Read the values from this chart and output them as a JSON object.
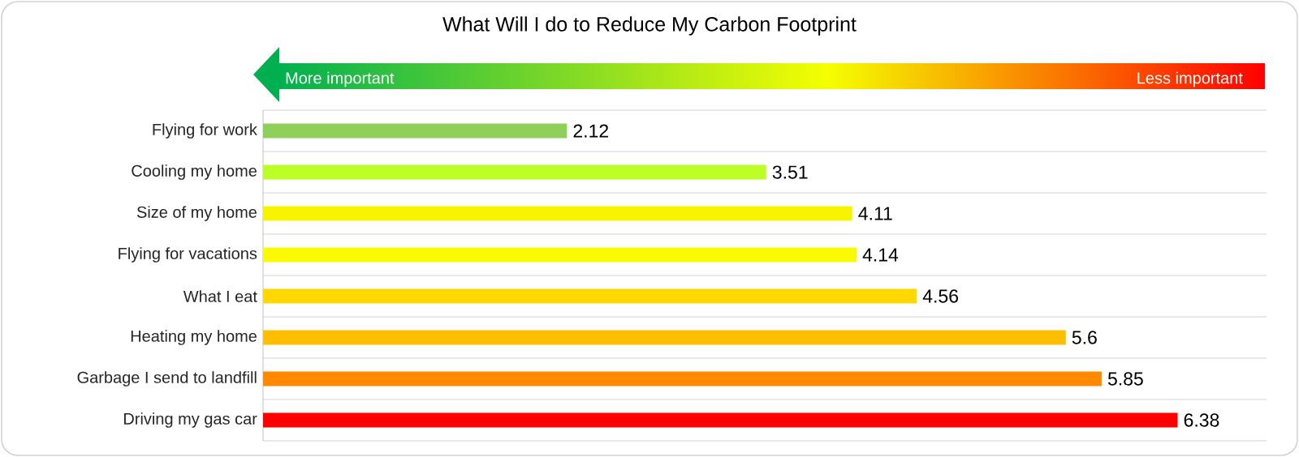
{
  "chart_data": {
    "type": "bar",
    "orientation": "horizontal",
    "title": "What Will I do to Reduce My Carbon Footprint",
    "categories": [
      "Flying for work",
      "Cooling my home",
      "Size of my home",
      "Flying for vacations",
      "What I eat",
      "Heating my home",
      "Garbage I send to landfill",
      "Driving my gas car"
    ],
    "values": [
      2.12,
      3.51,
      4.11,
      4.14,
      4.56,
      5.6,
      5.85,
      6.38
    ],
    "colors": [
      "#8fd05a",
      "#bcff26",
      "#f8f400",
      "#fafa00",
      "#ffd800",
      "#ffbe00",
      "#ff8a00",
      "#ff0000"
    ],
    "xlim": [
      0,
      7
    ],
    "data_labels": true,
    "grid": "y",
    "annotations": [
      "More important",
      "Less important"
    ]
  }
}
